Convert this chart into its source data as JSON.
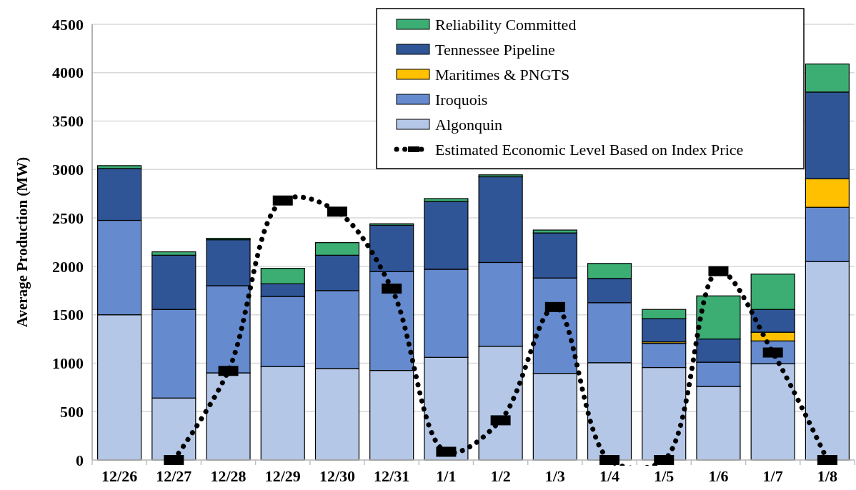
{
  "chart_data": {
    "type": "bar",
    "stacked": true,
    "ylabel": "Average Production (MW)",
    "categories": [
      "12/26",
      "12/27",
      "12/28",
      "12/29",
      "12/30",
      "12/31",
      "1/1",
      "1/2",
      "1/3",
      "1/4",
      "1/5",
      "1/6",
      "1/7",
      "1/8"
    ],
    "series": [
      {
        "name": "Algonquin",
        "color": "#b4c7e7",
        "values": [
          1500,
          640,
          900,
          965,
          945,
          925,
          1060,
          1175,
          895,
          1005,
          955,
          760,
          995,
          2050
        ]
      },
      {
        "name": "Iroquois",
        "color": "#658acd",
        "values": [
          975,
          915,
          900,
          725,
          805,
          1020,
          910,
          865,
          985,
          620,
          250,
          250,
          235,
          560
        ]
      },
      {
        "name": "Maritimes & PNGTS",
        "color": "#ffc000",
        "values": [
          0,
          0,
          0,
          0,
          0,
          0,
          0,
          0,
          0,
          0,
          15,
          0,
          90,
          295
        ]
      },
      {
        "name": "Tennessee Pipeline",
        "color": "#2f5597",
        "values": [
          535,
          560,
          475,
          130,
          365,
          480,
          700,
          885,
          465,
          250,
          240,
          240,
          235,
          895
        ]
      },
      {
        "name": "Reliability Committed",
        "color": "#3cae74",
        "values": [
          30,
          35,
          15,
          160,
          130,
          15,
          30,
          20,
          30,
          155,
          95,
          445,
          365,
          290
        ]
      },
      {
        "name": "Estimated Economic Level Based on Index Price",
        "type": "line",
        "color": "#000000",
        "line_style": "dotted",
        "marker": "square",
        "values": [
          null,
          0,
          920,
          2680,
          2565,
          1770,
          85,
          410,
          1580,
          0,
          0,
          1950,
          1110,
          0
        ]
      }
    ],
    "ylim": [
      0,
      4500
    ],
    "yticks": [
      0,
      500,
      1000,
      1500,
      2000,
      2500,
      3000,
      3500,
      4000,
      4500
    ],
    "grid": "y",
    "legend": "top right"
  }
}
